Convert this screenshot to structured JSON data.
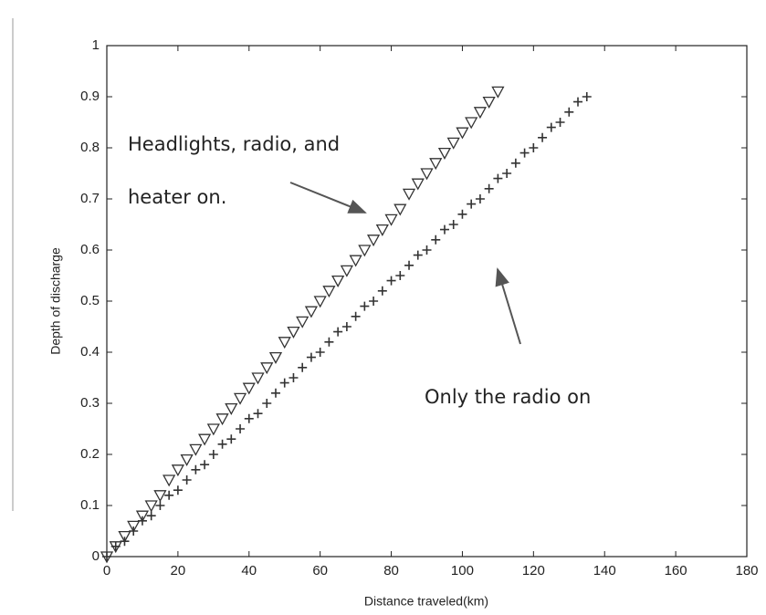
{
  "chart_data": {
    "type": "scatter",
    "xlabel": "Distance traveled(km)",
    "ylabel": "Depth of discharge",
    "annotations": [
      "Headlights, radio, and",
      "heater on.",
      "Only the radio on"
    ],
    "xlim": [
      0,
      180
    ],
    "ylim": [
      0,
      1
    ],
    "xticks": [
      0,
      20,
      40,
      60,
      80,
      100,
      120,
      140,
      160,
      180
    ],
    "yticks": [
      0,
      0.1,
      0.2,
      0.3,
      0.4,
      0.5,
      0.6,
      0.7,
      0.8,
      0.9,
      1
    ],
    "series": [
      {
        "marker": "triangle-down",
        "color": "#333333",
        "x": [
          0,
          2.5,
          5,
          7.5,
          10,
          12.5,
          15,
          17.5,
          20,
          22.5,
          25,
          27.5,
          30,
          32.5,
          35,
          37.5,
          40,
          42.5,
          45,
          47.5,
          50,
          52.5,
          55,
          57.5,
          60,
          62.5,
          65,
          67.5,
          70,
          72.5,
          75,
          77.5,
          80,
          82.5,
          85,
          87.5,
          90,
          92.5,
          95,
          97.5,
          100,
          102.5,
          105,
          107.5,
          110
        ],
        "values": [
          0,
          0.02,
          0.04,
          0.06,
          0.08,
          0.1,
          0.12,
          0.15,
          0.17,
          0.19,
          0.21,
          0.23,
          0.25,
          0.27,
          0.29,
          0.31,
          0.33,
          0.35,
          0.37,
          0.39,
          0.42,
          0.44,
          0.46,
          0.48,
          0.5,
          0.52,
          0.54,
          0.56,
          0.58,
          0.6,
          0.62,
          0.64,
          0.66,
          0.68,
          0.71,
          0.73,
          0.75,
          0.77,
          0.79,
          0.81,
          0.83,
          0.85,
          0.87,
          0.89,
          0.91
        ]
      },
      {
        "marker": "plus",
        "color": "#333333",
        "x": [
          0,
          2.5,
          5,
          7.5,
          10,
          12.5,
          15,
          17.5,
          20,
          22.5,
          25,
          27.5,
          30,
          32.5,
          35,
          37.5,
          40,
          42.5,
          45,
          47.5,
          50,
          52.5,
          55,
          57.5,
          60,
          62.5,
          65,
          67.5,
          70,
          72.5,
          75,
          77.5,
          80,
          82.5,
          85,
          87.5,
          90,
          92.5,
          95,
          97.5,
          100,
          102.5,
          105,
          107.5,
          110,
          112.5,
          115,
          117.5,
          120,
          122.5,
          125,
          127.5,
          130,
          132.5,
          135
        ],
        "values": [
          0,
          0.02,
          0.03,
          0.05,
          0.07,
          0.08,
          0.1,
          0.12,
          0.13,
          0.15,
          0.17,
          0.18,
          0.2,
          0.22,
          0.23,
          0.25,
          0.27,
          0.28,
          0.3,
          0.32,
          0.34,
          0.35,
          0.37,
          0.39,
          0.4,
          0.42,
          0.44,
          0.45,
          0.47,
          0.49,
          0.5,
          0.52,
          0.54,
          0.55,
          0.57,
          0.59,
          0.6,
          0.62,
          0.64,
          0.65,
          0.67,
          0.69,
          0.7,
          0.72,
          0.74,
          0.75,
          0.77,
          0.79,
          0.8,
          0.82,
          0.84,
          0.85,
          0.87,
          0.89,
          0.9
        ]
      }
    ]
  }
}
